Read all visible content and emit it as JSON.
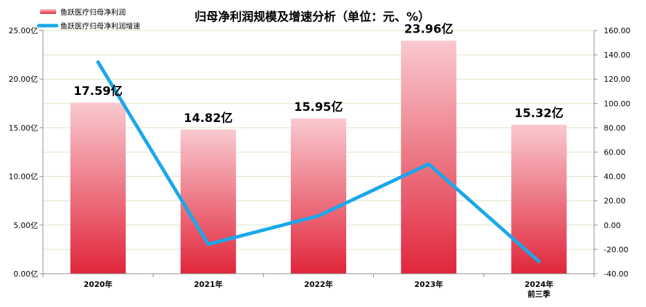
{
  "chart_data": {
    "type": "bar",
    "title": "归母净利润规模及增速分析（单位：元、%）",
    "categories": [
      "2020年",
      "2021年",
      "2022年",
      "2023年",
      "2024年\n前三季"
    ],
    "series": [
      {
        "name": "鱼跃医疗归母净利润",
        "type": "bar",
        "axis": "left",
        "values": [
          17.59,
          14.82,
          15.95,
          23.96,
          15.32
        ],
        "value_labels": [
          "17.59亿",
          "14.82亿",
          "15.95亿",
          "23.96亿",
          "15.32亿"
        ]
      },
      {
        "name": "鱼跃医疗归母净利润增速",
        "type": "line",
        "axis": "right",
        "values": [
          134,
          -15.7,
          7.6,
          50.2,
          -30
        ]
      }
    ],
    "y_left": {
      "ylim": [
        0,
        25
      ],
      "ticks": [
        0,
        5,
        10,
        15,
        20,
        25
      ],
      "tick_labels": [
        "0.00亿",
        "5.00亿",
        "10.00亿",
        "15.00亿",
        "20.00亿",
        "25.00亿"
      ]
    },
    "y_right": {
      "ylim": [
        -40,
        160
      ],
      "ticks": [
        -40,
        -20,
        0,
        20,
        40,
        60,
        80,
        100,
        120,
        140,
        160
      ],
      "tick_labels": [
        "-40.00",
        "-20.00",
        "0.00",
        "20.00",
        "40.00",
        "60.00",
        "80.00",
        "100.00",
        "120.00",
        "140.00",
        "160.00"
      ]
    },
    "grid": true,
    "legend": "top-left",
    "colors": {
      "bar_top": "#f9c9cf",
      "bar_bottom": "#e1263b",
      "line": "#1aa7ea",
      "grid": "#d6e7c4",
      "axis": "#8c8c8c"
    }
  }
}
